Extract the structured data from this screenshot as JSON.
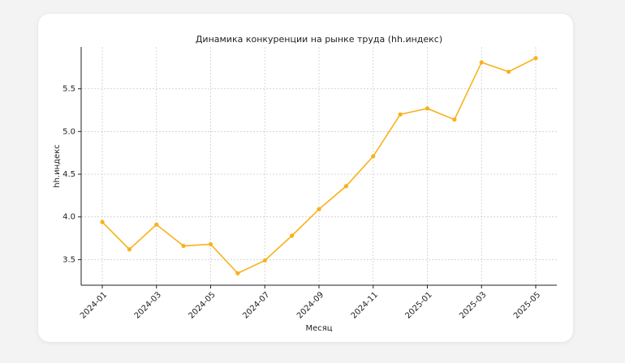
{
  "chart_data": {
    "type": "line",
    "title": "Динамика конкуренции на рынке труда (hh.индекс)",
    "x_label": "Месяц",
    "y_label": "hh.индекс",
    "categories": [
      "2024-01",
      null,
      "2024-03",
      null,
      "2024-05",
      null,
      "2024-07",
      null,
      "2024-09",
      null,
      "2024-11",
      null,
      "2025-01",
      null,
      "2025-03",
      null,
      "2025-05"
    ],
    "series": [
      {
        "name": "hh.индекс",
        "color": "#f7b21b",
        "values": [
          3.94,
          3.62,
          3.91,
          3.66,
          3.68,
          3.34,
          3.49,
          3.78,
          4.09,
          4.36,
          4.71,
          5.2,
          5.27,
          5.14,
          5.81,
          5.7,
          5.86
        ]
      }
    ],
    "ylim": [
      3.2,
      5.99
    ],
    "yticks": [
      3.5,
      {
        "value": 4,
        "label": "4.0"
      },
      4.5,
      {
        "value": 5,
        "label": "5.0"
      },
      5.5
    ],
    "grid": true
  }
}
